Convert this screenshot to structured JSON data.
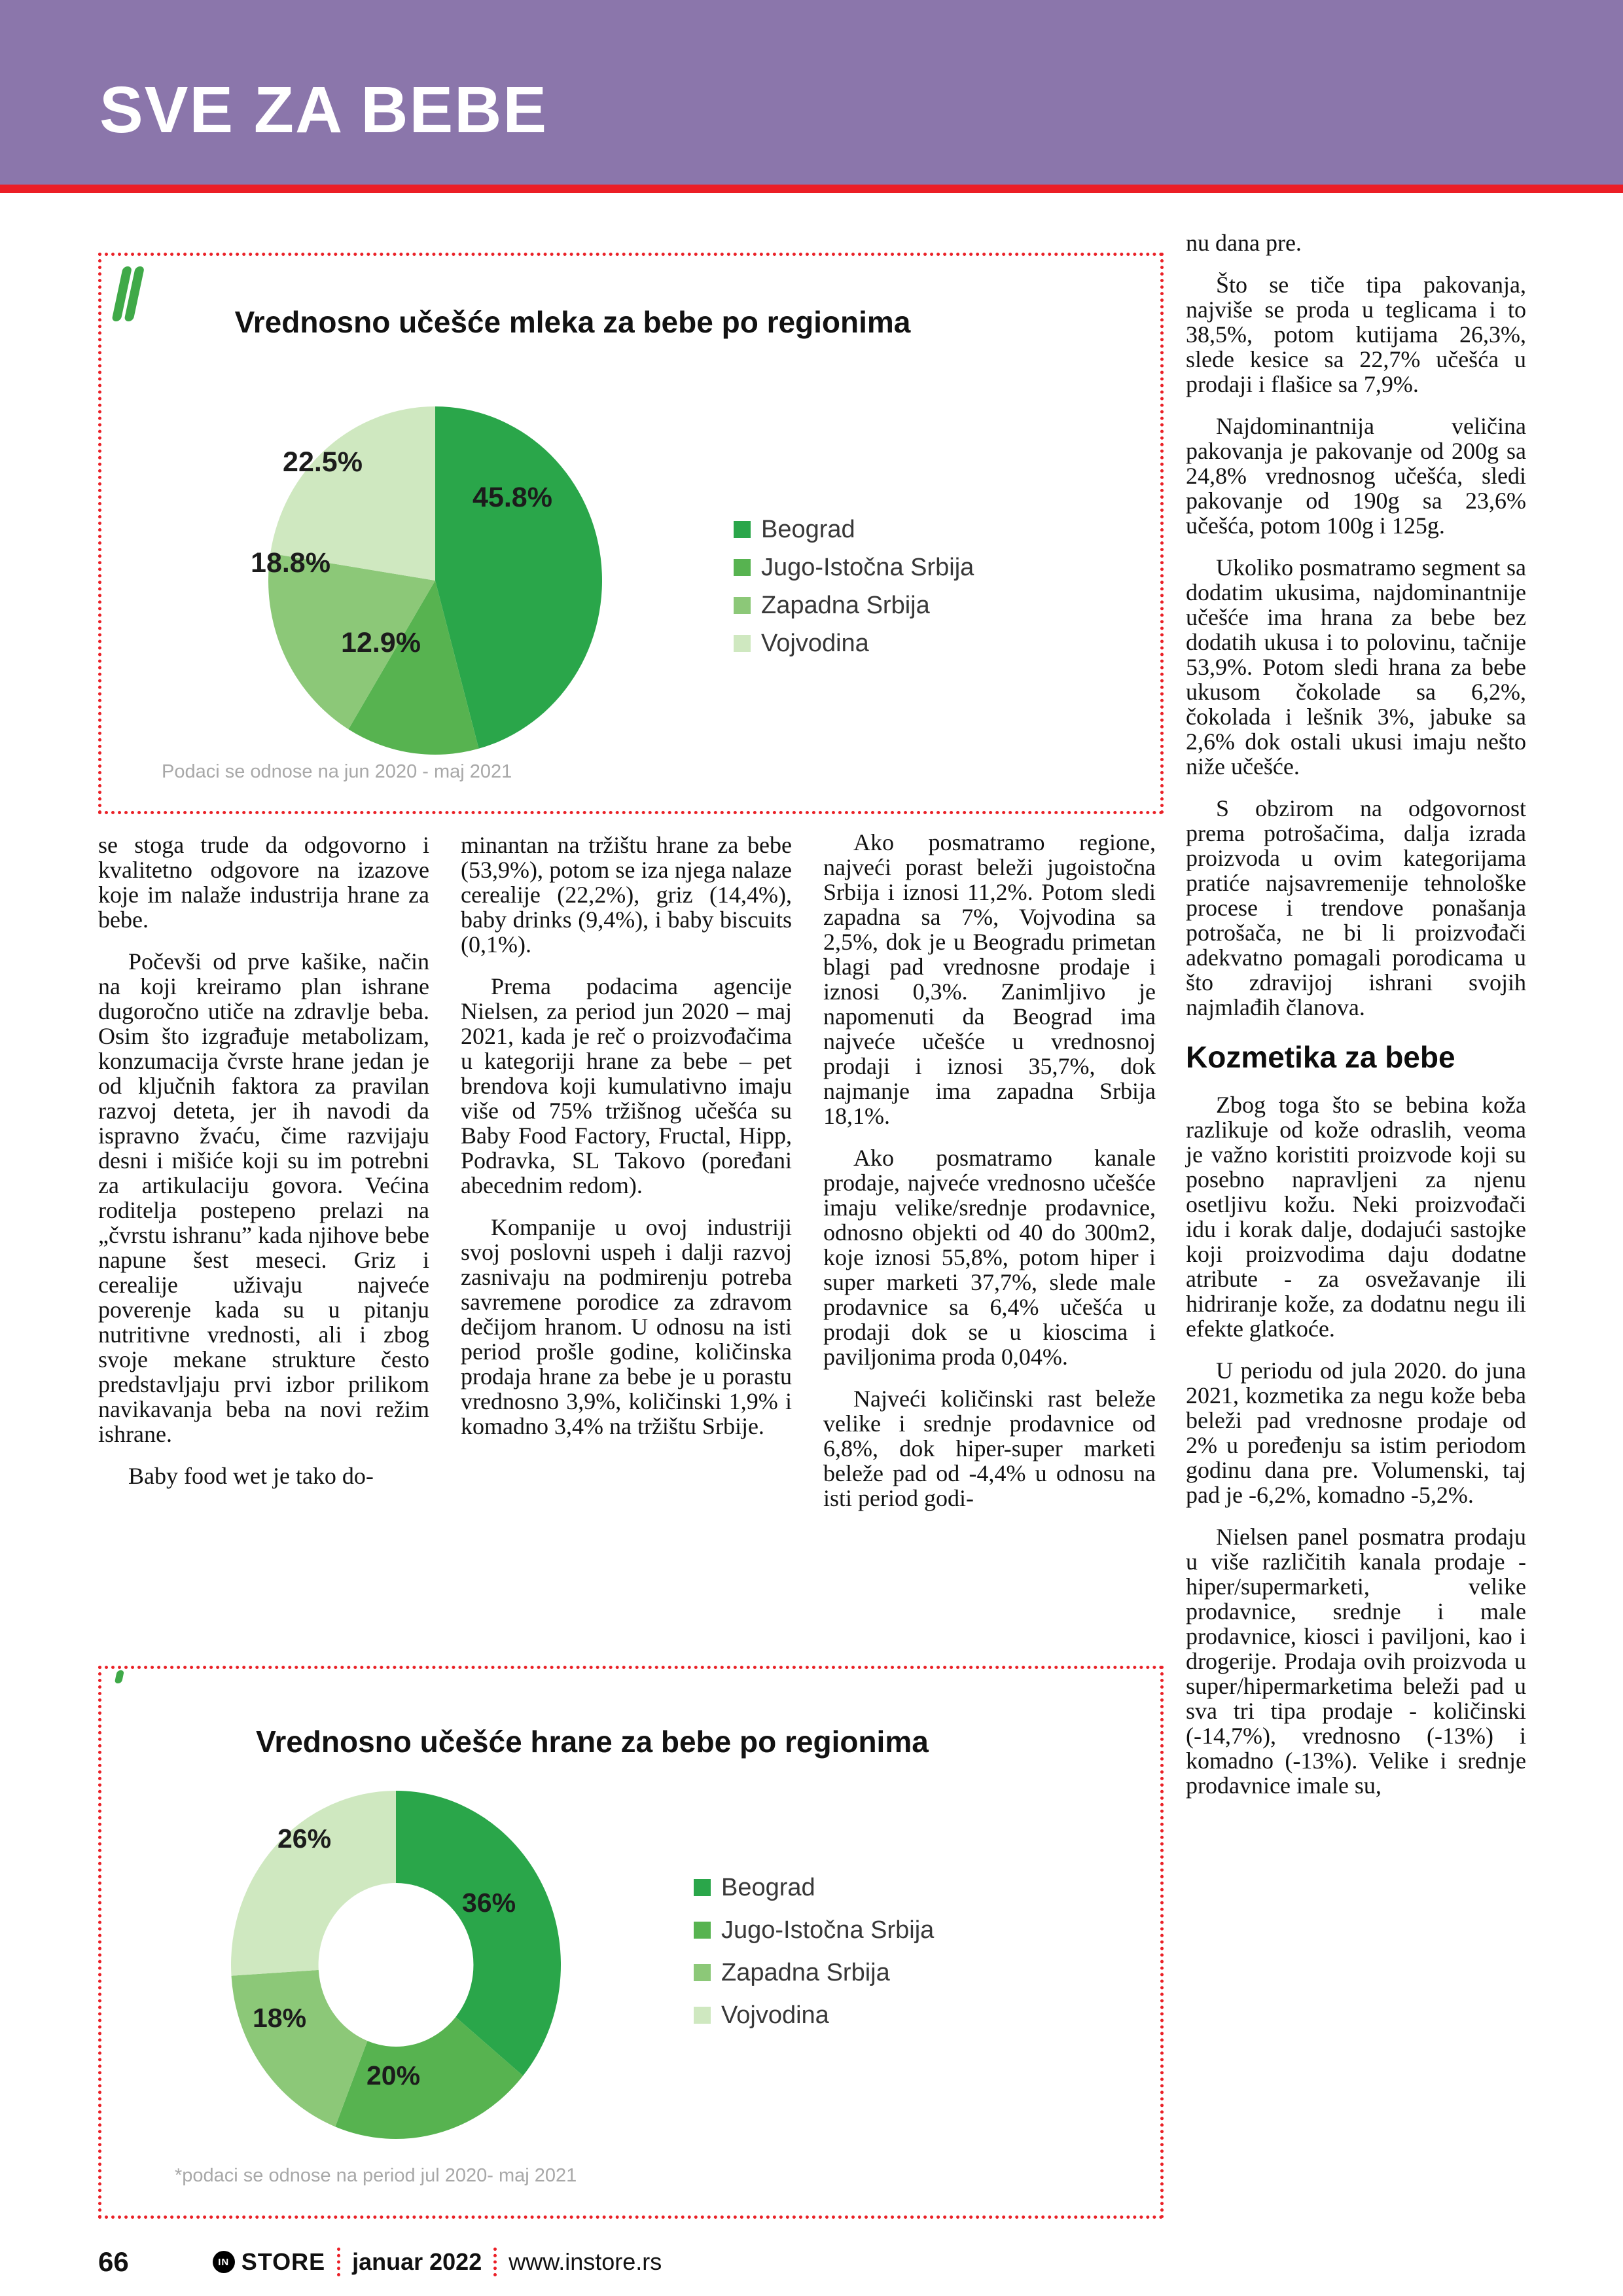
{
  "header": {
    "title": "SVE ZA BEBE"
  },
  "colors": {
    "accent_purple": "#8b76ab",
    "accent_red": "#eb1e26",
    "series": [
      "#2aa64a",
      "#57b350",
      "#8cc878",
      "#cfe8c0"
    ]
  },
  "chart_data": [
    {
      "type": "pie",
      "title": "Vrednosno učešće mleka za bebe po regionima",
      "categories": [
        "Beograd",
        "Jugo-Istočna Srbija",
        "Zapadna Srbija",
        "Vojvodina"
      ],
      "values": [
        45.8,
        12.9,
        18.8,
        22.5
      ],
      "value_labels": [
        "45.8%",
        "12.9%",
        "18.8%",
        "22.5%"
      ],
      "colors": [
        "#2aa64a",
        "#57b350",
        "#8cc878",
        "#cfe8c0"
      ],
      "slice_order": "clockwise from 12 o'clock",
      "legend_position": "right",
      "footnote": "Podaci se odnose na jun 2020 - maj 2021"
    },
    {
      "type": "donut",
      "title": "Vrednosno učešće hrane za bebe po regionima",
      "categories": [
        "Beograd",
        "Jugo-Istočna Srbija",
        "Zapadna Srbija",
        "Vojvodina"
      ],
      "values": [
        36,
        20,
        18,
        26
      ],
      "value_labels": [
        "36%",
        "20%",
        "18%",
        "26%"
      ],
      "colors": [
        "#2aa64a",
        "#57b350",
        "#8cc878",
        "#cfe8c0"
      ],
      "slice_order": "clockwise from 12 o'clock",
      "hole_ratio": 0.47,
      "legend_position": "right",
      "footnote": "*podaci se odnose na period jul 2020- maj 2021"
    }
  ],
  "article": {
    "columns": [
      [
        {
          "type": "p",
          "text": "se stoga trude da odgovorno i kvalitetno odgovore na izazove koje im nalaže industrija hrane za bebe."
        },
        {
          "type": "p-indent",
          "text": "Počevši od prve kašike, način na koji kreiramo plan ishrane dugoročno utiče na zdravlje beba. Osim što izgrađuje metabolizam, konzumacija čvrste hrane jedan je od ključnih faktora za pravilan razvoj deteta, jer ih navodi da ispravno žvaću, čime razvijaju desni i mišiće koji su im potrebni za artikulaciju govora. Većina roditelja postepeno prelazi na „čvrstu ishranu” kada njihove bebe napune šest meseci. Griz i cerealije uživaju najveće poverenje kada su u pitanju nutritivne vrednosti, ali i zbog svoje mekane strukture često predstavljaju prvi izbor prilikom navikavanja beba na novi režim ishrane."
        },
        {
          "type": "p-indent",
          "text": "Baby food wet je tako do-"
        }
      ],
      [
        {
          "type": "p",
          "text": "minantan na tržištu hrane za bebe (53,9%), potom se iza njega nalaze cerealije (22,2%), griz (14,4%), baby drinks (9,4%), i baby biscuits (0,1%)."
        },
        {
          "type": "p-indent",
          "text": "Prema podacima agencije Nielsen, za period jun 2020 – maj 2021, kada je reč o proizvođačima u kategoriji hrane za bebe – pet brendova koji kumulativno imaju više od 75% tržišnog učešća su Baby Food Factory, Fructal, Hipp, Podravka, SL Takovo (poređani abecednim redom)."
        },
        {
          "type": "p-indent",
          "text": "Kompanije u ovoj industriji svoj poslovni uspeh i dalji razvoj zasnivaju na podmirenju potreba savremene porodice za zdravom dečijom hranom. U odnosu na isti period prošle godine, količinska prodaja hrane za bebe je u porastu vrednosno 3,9%, količinski 1,9% i komadno 3,4% na tržištu Srbije."
        }
      ],
      [
        {
          "type": "p-indent",
          "text": "Ako posmatramo regione, najveći porast beleži jugoistočna Srbija i iznosi 11,2%. Potom sledi zapadna sa 7%, Vojvodina sa 2,5%, dok je u Beogradu primetan blagi pad vrednosne prodaje i iznosi 0,3%. Zanimljivo je napomenuti da Beograd ima najveće učešće u vrednosnoj prodaji i iznosi 35,7%, dok najmanje ima zapadna Srbija 18,1%."
        },
        {
          "type": "p-indent",
          "text": "Ako posmatramo kanale prodaje, najveće vrednosno učešće imaju velike/srednje prodavnice, odnosno objekti od 40 do 300m2, koje iznosi 55,8%, potom hiper i super marketi 37,7%, slede male prodavnice sa 6,4% učešća u prodaji dok se u kioscima i paviljonima proda 0,04%."
        },
        {
          "type": "p-indent",
          "text": "Najveći količinski rast beleže velike i srednje prodavnice od 6,8%, dok hiper-super marketi beleže pad od -4,4% u odnosu na isti period godi-"
        }
      ],
      [
        {
          "type": "p",
          "text": "nu dana pre."
        },
        {
          "type": "p-indent",
          "text": "Što se tiče tipa pakovanja, najviše se proda u teglicama i to 38,5%, potom kutijama 26,3%, slede kesice sa 22,7% učešća u prodaji i flašice sa 7,9%."
        },
        {
          "type": "p-indent",
          "text": "Najdominantnija veličina pakovanja je pakovanje od 200g sa 24,8% vrednosnog učešća, sledi pakovanje od 190g sa 23,6% učešća, potom 100g i 125g."
        },
        {
          "type": "p-indent",
          "text": "Ukoliko posmatramo segment sa dodatim ukusima, najdominantnije učešće ima hrana za bebe bez dodatih ukusa i to polovinu, tačnije 53,9%. Potom sledi hrana za bebe ukusom čokolade sa 6,2%, čokolada i lešnik 3%, jabuke sa 2,6% dok ostali ukusi imaju nešto niže učešće."
        },
        {
          "type": "p-indent",
          "text": "S obzirom na odgovornost prema potrošačima, dalja izrada proizvoda u ovim kategorijama pratiće najsavremenije tehnološke procese i trendove ponašanja potrošača, ne bi li proizvođači adekvatno pomagali porodicama u što zdravijoj ishrani svojih najmlađih članova."
        },
        {
          "type": "h2",
          "text": "Kozmetika za bebe"
        },
        {
          "type": "p-indent",
          "text": "Zbog toga što se bebina koža razlikuje od kože odraslih, veoma je važno koristiti proizvode koji su posebno napravljeni za njenu osetljivu kožu. Neki proizvođači idu i korak dalje, dodajući sastojke koji proizvodima daju dodatne atribute - za osvežavanje ili hidriranje kože, za dodatnu negu ili efekte glatkoće."
        },
        {
          "type": "p-indent",
          "text": "U periodu od jula 2020. do juna 2021, kozmetika za negu kože beba beleži pad vrednosne prodaje od 2% u poređenju sa istim periodom godinu dana pre. Volumenski, taj pad je -6,2%, komadno -5,2%."
        },
        {
          "type": "p-indent",
          "text": "Nielsen panel posmatra prodaju u više različitih kanala prodaje - hiper/supermarketi, velike prodavnice, srednje i male prodavnice, kiosci i paviljoni, kao i drogerije. Prodaja ovih proizvoda u super/hipermarketima beleži pad u sva tri tipa prodaje - količinski (-14,7%), vrednosno (-13%) i komadno (-13%). Velike i srednje prodavnice imale su,"
        }
      ]
    ]
  },
  "footer": {
    "page_number": "66",
    "logo_monogram": "IN",
    "brand": "STORE",
    "issue": "januar 2022",
    "website": "www.instore.rs"
  }
}
